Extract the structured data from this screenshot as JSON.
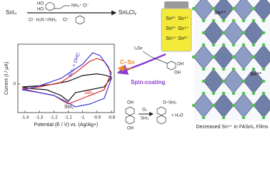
{
  "reaction": {
    "reactant": "SnI₄",
    "product": "SnIₓClᵧ",
    "additive_labels": [
      "HO",
      "HO",
      "NH₃⁺ Cl⁻",
      "Cl⁻ H₂N⁺=NH₂",
      "Cl⁻"
    ]
  },
  "vial": {
    "labels": [
      "Sn²⁺",
      "Sn⁴⁺",
      "Sn²⁺",
      "Sn⁴⁺",
      "Sn⁴⁺",
      "Sn²⁺"
    ]
  },
  "process": {
    "spin_coating": "Spin-coating",
    "bond": "C–Sn",
    "complex_labels": [
      "I₃Sn",
      "OH",
      "OH"
    ]
  },
  "oxidation": {
    "reactant_labels": [
      "OH",
      "OH"
    ],
    "reagent_top": "O₂",
    "reagent_bottom": "SnI₂",
    "product_label": "O–SnI₂",
    "byproduct": "+ H₂O"
  },
  "crystal": {
    "labels": [
      "Sn⁴⁺",
      "Sn⁴⁺"
    ],
    "caption": "Decreased Sn⁴⁺ in FASnI₃ Films"
  },
  "chart_data": {
    "type": "line",
    "x_label": "Potential (E / V) vs. (Ag/Ag+)",
    "y_label": "Current (I / μA)",
    "xlim": [
      -1.45,
      -0.78
    ],
    "xticks": [
      -1.4,
      -1.3,
      -1.2,
      -1.1,
      -1.0,
      -0.9,
      -0.8
    ],
    "ylim": [
      -5,
      7
    ],
    "yticks": [
      0
    ],
    "series": [
      {
        "name": "SnI₂",
        "color": "#111111",
        "x": [
          -1.42,
          -1.3,
          -1.2,
          -1.1,
          -1.0,
          -0.9,
          -0.85,
          -0.8,
          -0.85,
          -0.95,
          -1.05,
          -1.1,
          -1.15,
          -1.25,
          -1.35,
          -1.42
        ],
        "values": [
          -0.5,
          -0.3,
          0,
          0.5,
          1.5,
          1.8,
          1.6,
          1.2,
          -0.5,
          -1,
          -1.5,
          -3,
          -2,
          -1,
          -0.8,
          -0.5
        ]
      },
      {
        "name": "SnI₄",
        "color": "#d62728",
        "x": [
          -1.42,
          -1.3,
          -1.15,
          -1.05,
          -0.95,
          -0.9,
          -0.85,
          -0.8,
          -0.85,
          -0.95,
          -1.05,
          -1.1,
          -1.2,
          -1.3,
          -1.42
        ],
        "values": [
          -0.8,
          -0.5,
          0.3,
          2,
          4,
          4.5,
          4,
          2,
          -1,
          -2,
          -3,
          -3.5,
          -2,
          -1.5,
          -0.8
        ]
      },
      {
        "name": "SnI₄ + DHC",
        "color": "#3b3bd6",
        "x": [
          -1.42,
          -1.3,
          -1.15,
          -1.0,
          -0.93,
          -0.88,
          -0.82,
          -0.8,
          -0.85,
          -0.95,
          -1.05,
          -1.12,
          -1.2,
          -1.3,
          -1.42
        ],
        "values": [
          -1,
          -0.3,
          1,
          3.5,
          5.5,
          5,
          3,
          1,
          -2.5,
          -3.5,
          -4,
          -3,
          -2,
          -1.5,
          -1
        ]
      }
    ]
  }
}
